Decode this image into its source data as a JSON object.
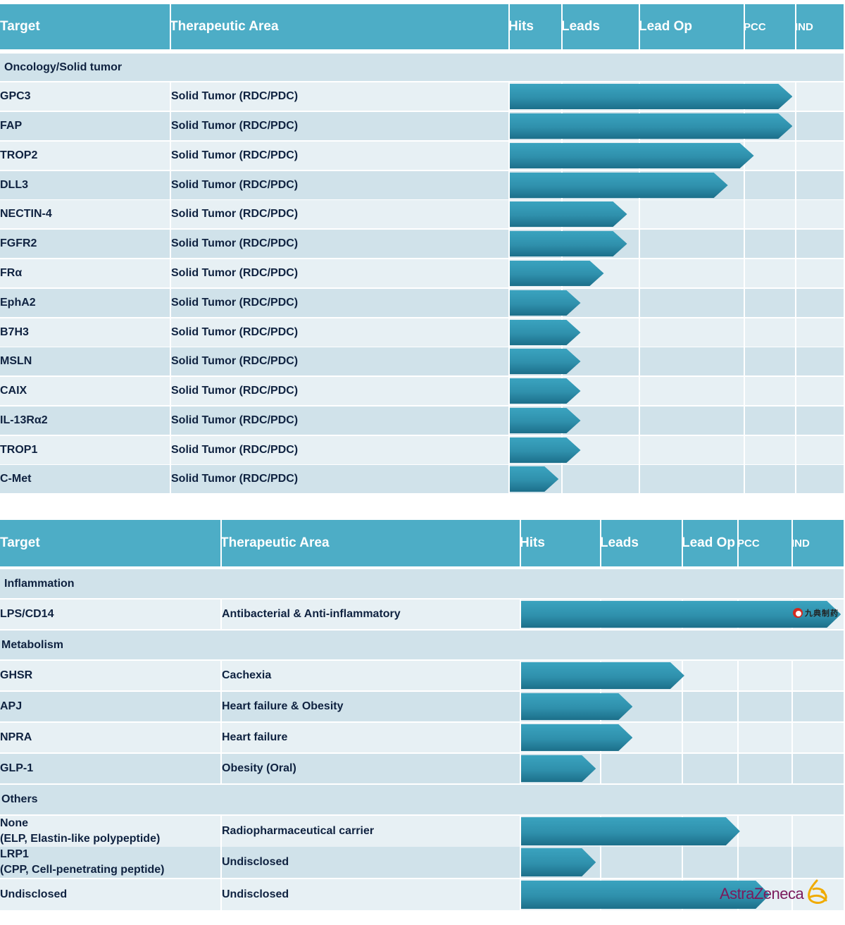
{
  "chart_data": [
    {
      "type": "table",
      "headers": [
        "Target",
        "Therapeutic Area",
        "Hits",
        "Leads",
        "Lead Op",
        "PCC",
        "IND"
      ],
      "sections": [
        {
          "name": "Oncology/Solid tumor",
          "rows": [
            {
              "target": "GPC3",
              "area": "Solid Tumor (RDC/PDC)",
              "progress": 3.95
            },
            {
              "target": "FAP",
              "area": "Solid Tumor (RDC/PDC)",
              "progress": 3.95
            },
            {
              "target": "TROP2",
              "area": "Solid Tumor (RDC/PDC)",
              "progress": 3.2
            },
            {
              "target": "DLL3",
              "area": "Solid Tumor (RDC/PDC)",
              "progress": 2.85
            },
            {
              "target": "NECTIN-4",
              "area": "Solid Tumor (RDC/PDC)",
              "progress": 1.85
            },
            {
              "target": "FGFR2",
              "area": "Solid Tumor (RDC/PDC)",
              "progress": 1.85
            },
            {
              "target": "FRα",
              "area": "Solid Tumor (RDC/PDC)",
              "progress": 1.55
            },
            {
              "target": "EphA2",
              "area": "Solid Tumor (RDC/PDC)",
              "progress": 1.25
            },
            {
              "target": "B7H3",
              "area": "Solid Tumor (RDC/PDC)",
              "progress": 1.25
            },
            {
              "target": "MSLN",
              "area": "Solid Tumor (RDC/PDC)",
              "progress": 1.25
            },
            {
              "target": "CAIX",
              "area": "Solid Tumor (RDC/PDC)",
              "progress": 1.25
            },
            {
              "target": "IL-13Rα2",
              "area": "Solid Tumor (RDC/PDC)",
              "progress": 1.25
            },
            {
              "target": "TROP1",
              "area": "Solid Tumor (RDC/PDC)",
              "progress": 1.25
            },
            {
              "target": "C-Met",
              "area": "Solid Tumor (RDC/PDC)",
              "progress": 0.95
            }
          ]
        }
      ]
    },
    {
      "type": "table",
      "headers": [
        "Target",
        "Therapeutic Area",
        "Hits",
        "Leads",
        "Lead Op",
        "PCC",
        "IND"
      ],
      "sections": [
        {
          "name": "Inflammation",
          "rows": [
            {
              "target": "LPS/CD14",
              "area": "Antibacterial & Anti-inflammatory",
              "progress": 4.95,
              "partner": "九典制药"
            }
          ]
        },
        {
          "name": "Metabolism",
          "rows": [
            {
              "target": "GHSR",
              "area": "Cachexia",
              "progress": 2.05
            },
            {
              "target": "APJ",
              "area": "Heart failure & Obesity",
              "progress": 1.4
            },
            {
              "target": "NPRA",
              "area": "Heart failure",
              "progress": 1.4
            },
            {
              "target": "GLP-1",
              "area": "Obesity (Oral)",
              "progress": 0.95
            }
          ]
        },
        {
          "name": "Others",
          "rows": [
            {
              "target": "None",
              "target2": "(ELP, Elastin-like polypeptide)",
              "area": "Radiopharmaceutical carrier",
              "progress": 3.05
            },
            {
              "target": "LRP1",
              "target2": "(CPP, Cell-penetrating peptide)",
              "area": "Undisclosed",
              "progress": 0.95
            },
            {
              "target": "Undisclosed",
              "area": "Undisclosed",
              "progress": 3.6,
              "partner": "AstraZeneca"
            }
          ]
        }
      ]
    }
  ]
}
